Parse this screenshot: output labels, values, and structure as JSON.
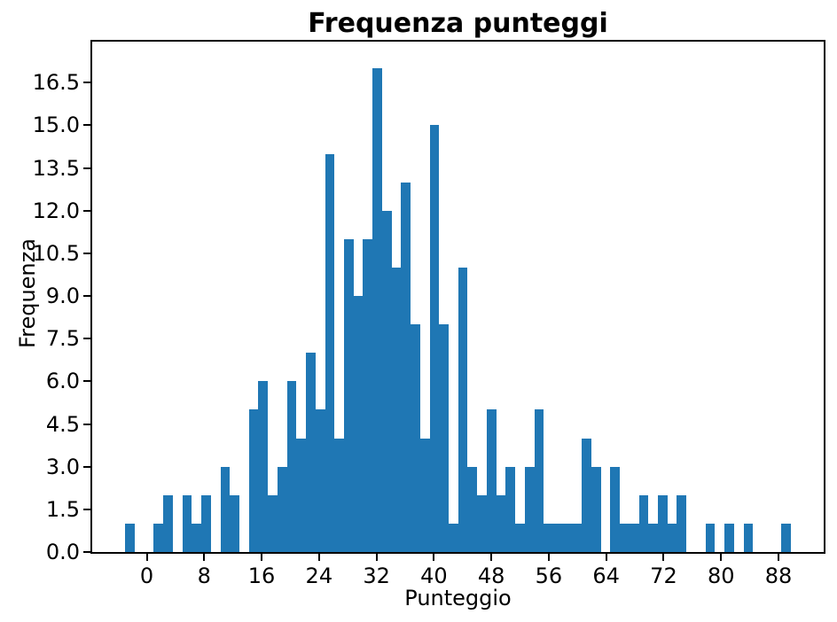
{
  "chart_data": {
    "type": "bar",
    "subtype": "histogram",
    "title": "Frequenza punteggi",
    "xlabel": "Punteggio",
    "ylabel": "Frequenza",
    "bar_color": "#1f77b4",
    "background": "#ffffff",
    "grid": false,
    "legend": false,
    "bins": {
      "start": -3.0,
      "width": 1.325,
      "count": 70
    },
    "values": [
      1,
      0,
      0,
      1,
      2,
      0,
      2,
      1,
      2,
      0,
      3,
      2,
      0,
      5,
      6,
      2,
      3,
      6,
      4,
      7,
      5,
      14,
      4,
      11,
      9,
      11,
      17,
      12,
      10,
      13,
      8,
      4,
      15,
      8,
      1,
      10,
      3,
      2,
      5,
      2,
      3,
      1,
      3,
      5,
      1,
      1,
      1,
      1,
      4,
      3,
      0,
      3,
      1,
      1,
      2,
      1,
      2,
      1,
      2,
      0,
      0,
      1,
      0,
      1,
      0,
      1,
      0,
      0,
      0,
      1
    ],
    "x_ticks": [
      0,
      8,
      16,
      24,
      32,
      40,
      48,
      56,
      64,
      72,
      80,
      88
    ],
    "y_tick_labels": [
      "0.0",
      "1.5",
      "3.0",
      "4.5",
      "6.0",
      "7.5",
      "9.0",
      "10.5",
      "12.0",
      "13.5",
      "15.0",
      "16.5"
    ],
    "y_tick_values": [
      0,
      1.5,
      3.0,
      4.5,
      6.0,
      7.5,
      9.0,
      10.5,
      12.0,
      13.5,
      15.0,
      16.5
    ],
    "xlim": [
      -7.6,
      94.3
    ],
    "ylim": [
      0,
      17.94
    ]
  }
}
